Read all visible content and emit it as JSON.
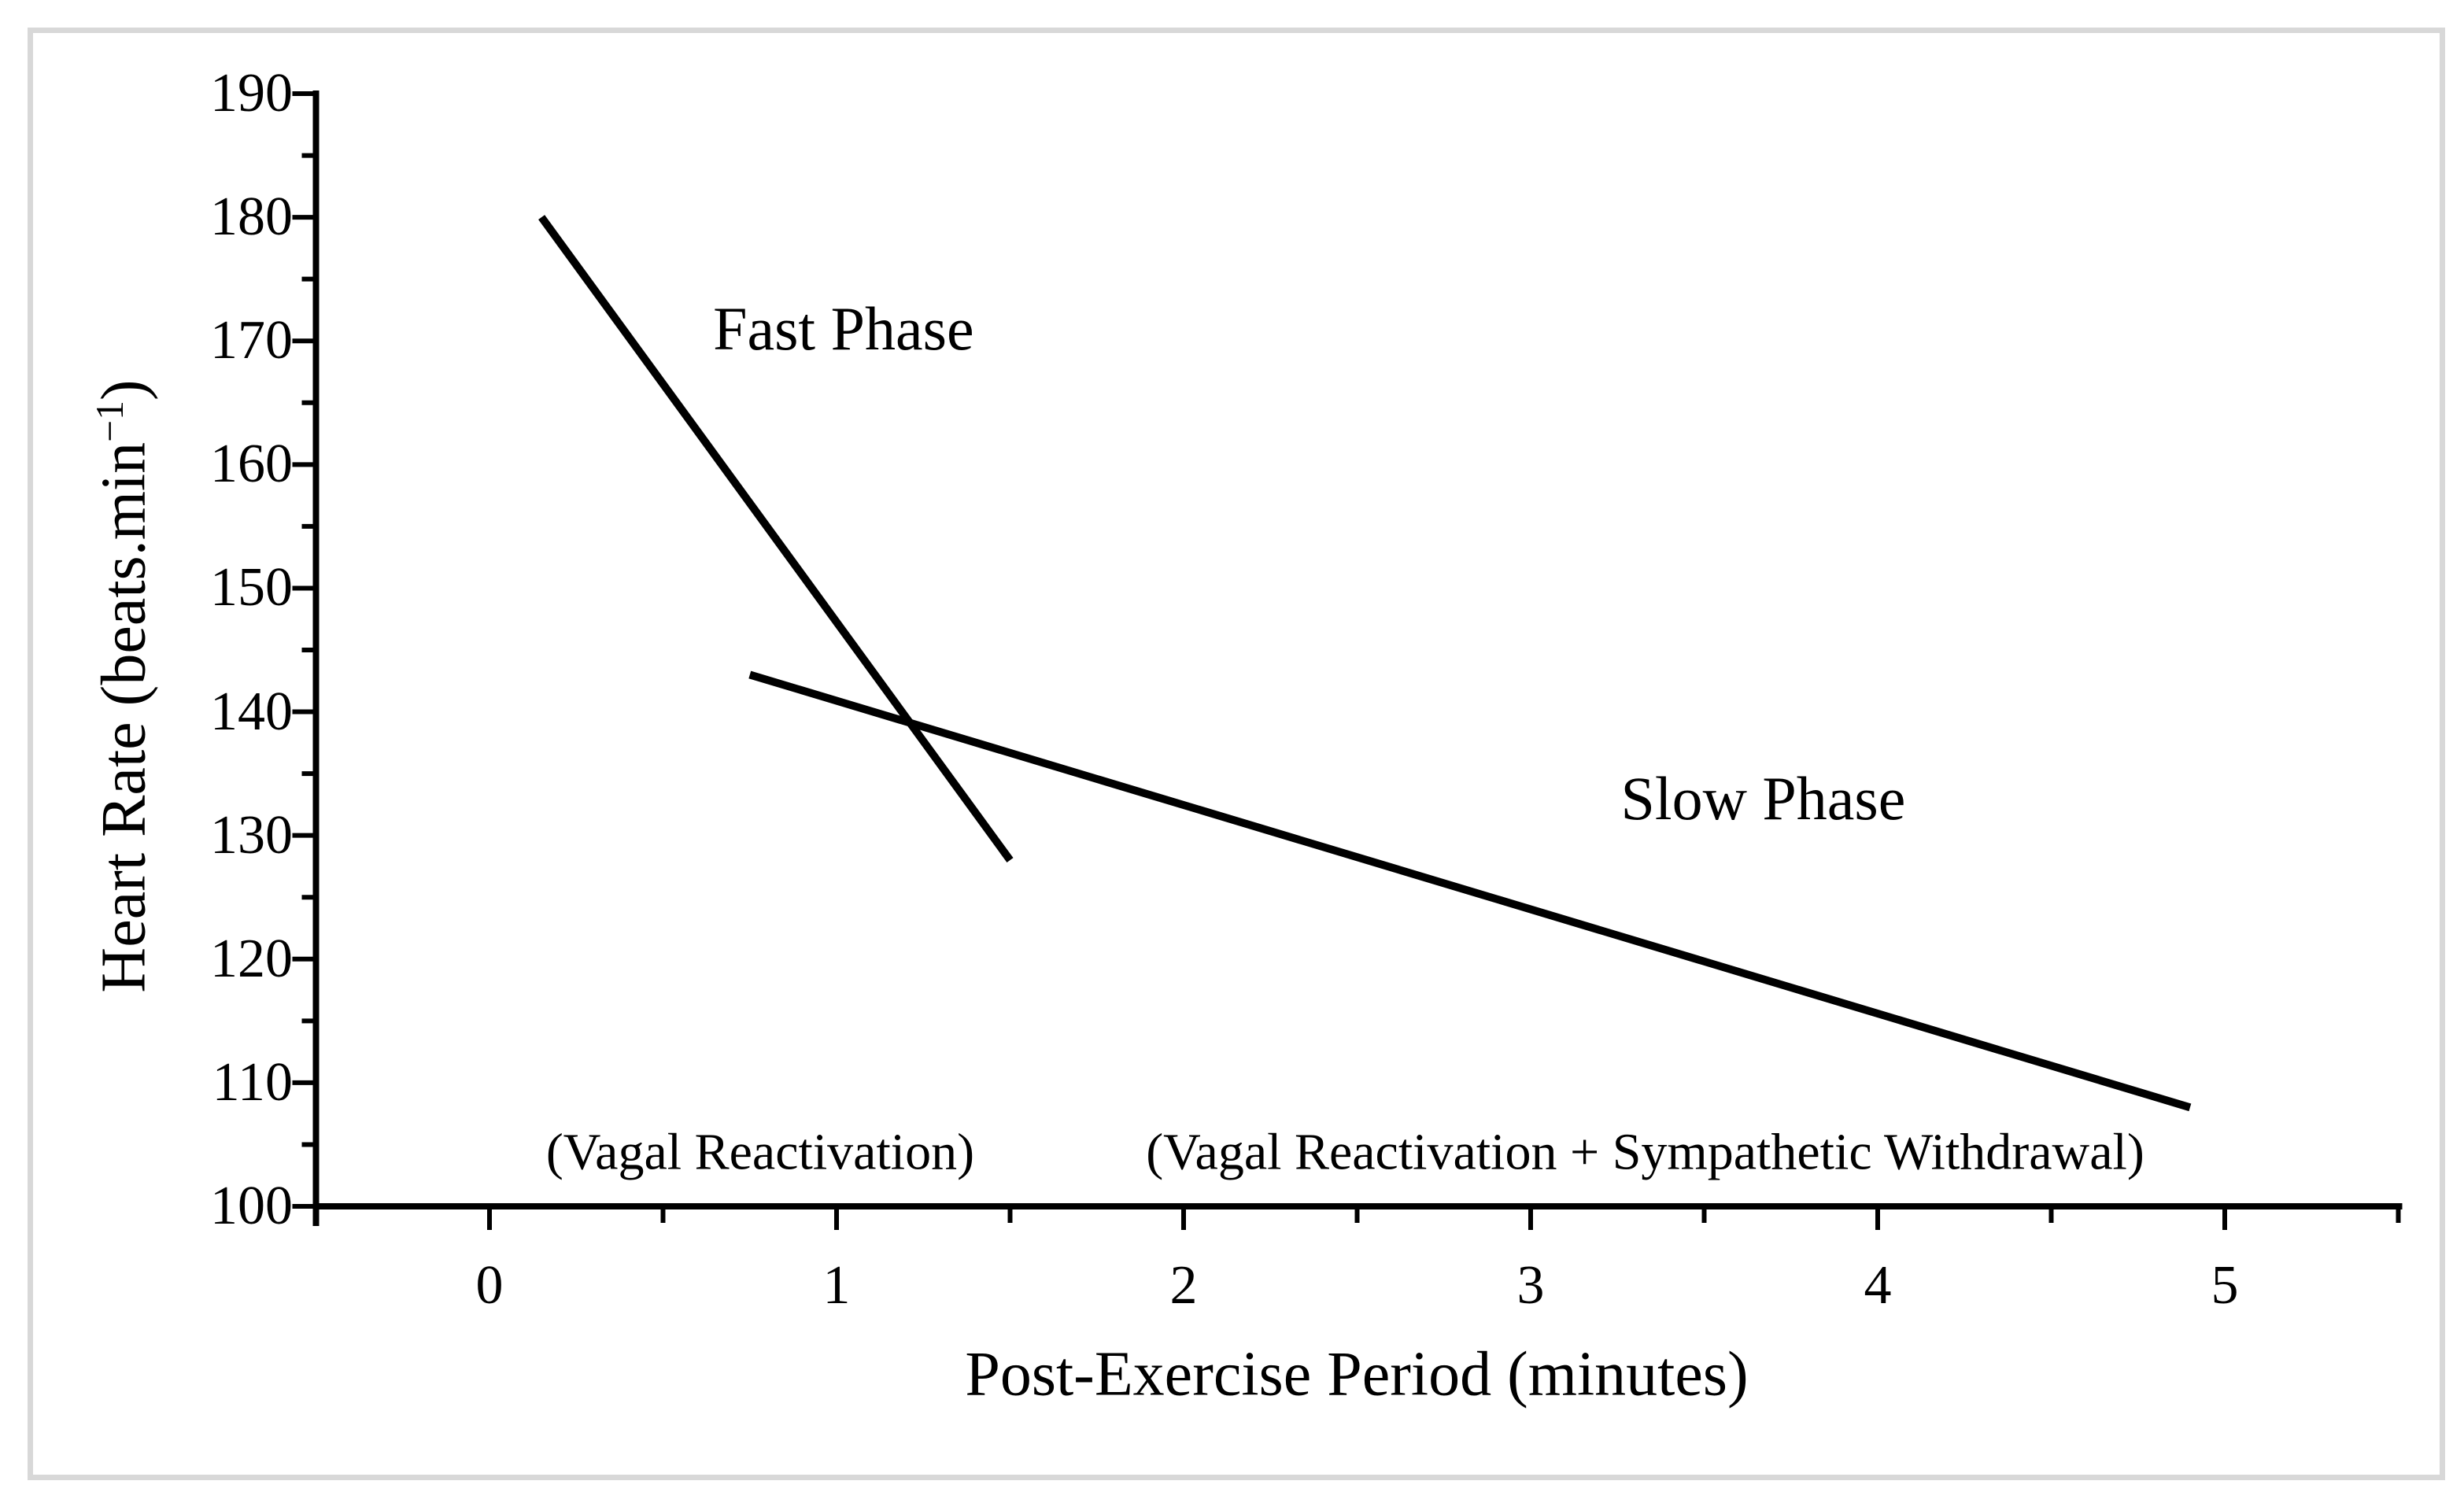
{
  "figure": {
    "background_color": "#ffffff",
    "frame_color": "#d8d8d8"
  },
  "chart_data": {
    "type": "line",
    "xlabel": "Post-Exercise Period (minutes)",
    "ylabel": "Heart Rate (beats.min⁻¹)",
    "ylabel_parts": {
      "base": "Heart Rate (beats.min",
      "superscript": "−1",
      "end": ")"
    },
    "x_axis": {
      "min": -0.5,
      "max": 5.5,
      "tick_min": 0,
      "tick_max": 5,
      "major_step": 1,
      "minor_step": 0.5,
      "tick_labels": [
        "0",
        "1",
        "2",
        "3",
        "4",
        "5"
      ]
    },
    "y_axis": {
      "min": 100,
      "max": 190,
      "major_step": 10,
      "minor_step": 5,
      "tick_labels": [
        "100",
        "110",
        "120",
        "130",
        "140",
        "150",
        "160",
        "170",
        "180",
        "190"
      ]
    },
    "grid": false,
    "legend": false,
    "line_color": "#000000",
    "series": [
      {
        "name": "Fast Phase",
        "points": [
          [
            0.15,
            180
          ],
          [
            1.5,
            128
          ]
        ]
      },
      {
        "name": "Slow Phase",
        "points": [
          [
            0.75,
            143
          ],
          [
            4.9,
            108
          ]
        ]
      }
    ],
    "annotations": [
      {
        "id": "fast-phase",
        "text": "Fast Phase",
        "x": 1.02,
        "y": 171
      },
      {
        "id": "slow-phase",
        "text": "Slow Phase",
        "x": 3.67,
        "y": 133
      },
      {
        "id": "vagal",
        "text": "(Vagal Reactivation)",
        "x": 0.78,
        "y": 104.3
      },
      {
        "id": "vagal-sympathetic",
        "text": "(Vagal Reactivation + Sympathetic Withdrawal)",
        "x": 3.33,
        "y": 104.3
      }
    ]
  }
}
